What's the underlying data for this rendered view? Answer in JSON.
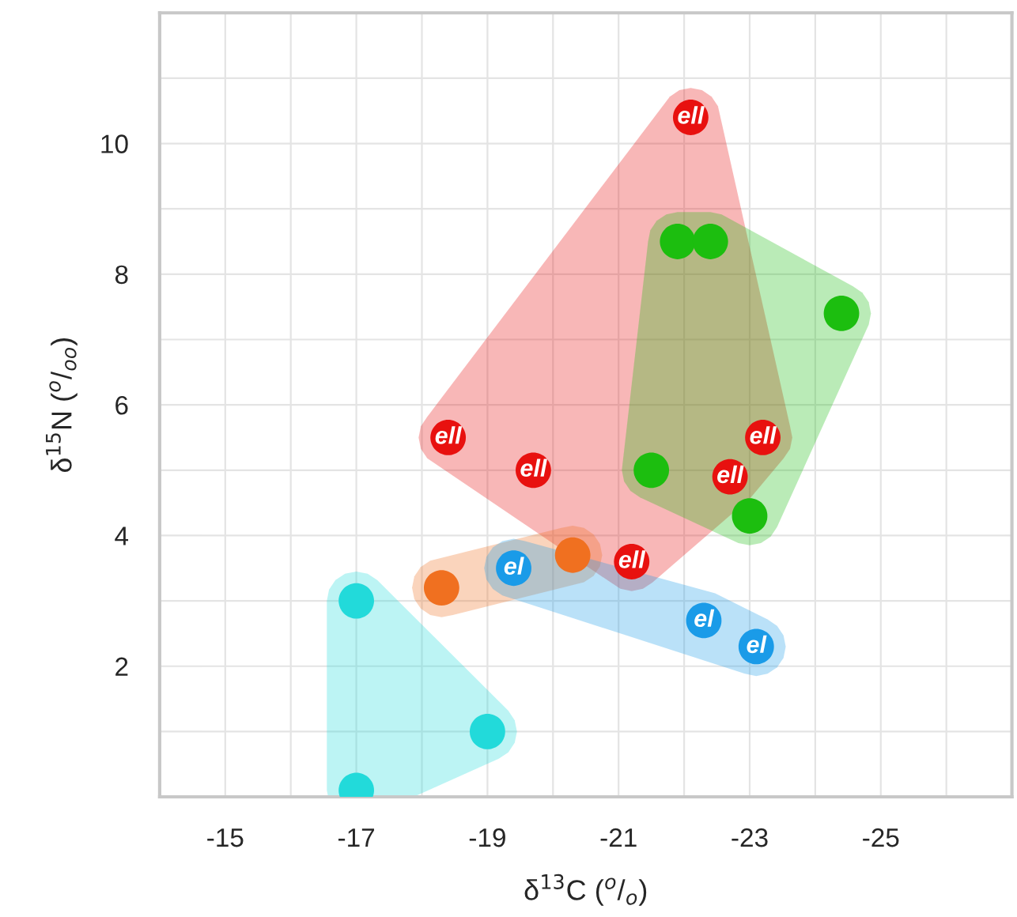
{
  "chart_data": {
    "type": "scatter",
    "xlabel": "δ$^{13}$C ($^{o}$/$_{o}$)",
    "ylabel": "δ$^{15}$N ($^{o}$/$_{oo}$)",
    "xlim": [
      -14,
      -27
    ],
    "ylim": [
      0,
      12
    ],
    "xticks": [
      {
        "value": -15,
        "label": "-15"
      },
      {
        "value": -16,
        "label": null
      },
      {
        "value": -17,
        "label": "-17"
      },
      {
        "value": -18,
        "label": null
      },
      {
        "value": -19,
        "label": "-19"
      },
      {
        "value": -20,
        "label": null
      },
      {
        "value": -21,
        "label": "-21"
      },
      {
        "value": -22,
        "label": null
      },
      {
        "value": -23,
        "label": "-23"
      },
      {
        "value": -24,
        "label": null
      },
      {
        "value": -25,
        "label": "-25"
      },
      {
        "value": -26,
        "label": null
      }
    ],
    "yticks": [
      {
        "value": 1,
        "label": null
      },
      2,
      {
        "value": 3,
        "label": null
      },
      4,
      {
        "value": 5,
        "label": null
      },
      6,
      {
        "value": 7,
        "label": null
      },
      8,
      {
        "value": 9,
        "label": null
      },
      10,
      {
        "value": 11,
        "label": null
      }
    ],
    "grid": true,
    "legend": false,
    "marker": "circle",
    "series": [
      {
        "color": "#e8110f",
        "x": [
          -22.1,
          -18.4,
          -19.7,
          -23.2,
          -22.7,
          -21.2
        ],
        "values": [
          10.4,
          5.5,
          5.0,
          5.5,
          4.9,
          3.6
        ]
      },
      {
        "color": "#1cbe0f",
        "x": [
          -21.9,
          -22.4,
          -24.4,
          -21.5,
          -23.0
        ],
        "values": [
          8.5,
          8.5,
          7.4,
          5.0,
          4.3
        ]
      },
      {
        "color": "#f07020",
        "x": [
          -18.3,
          -20.3
        ],
        "values": [
          3.2,
          3.7
        ]
      },
      {
        "color": "#1a9be8",
        "x": [
          -19.4,
          -22.3,
          -23.1
        ],
        "values": [
          3.5,
          2.7,
          2.3
        ]
      },
      {
        "color": "#22dada",
        "x": [
          -17.0,
          -19.0,
          -17.0
        ],
        "values": [
          3.0,
          1.0,
          0.1
        ]
      }
    ],
    "annotations": [
      {
        "text": "ell",
        "x": -22.1,
        "y": 10.4
      },
      {
        "text": "ell",
        "x": -18.4,
        "y": 5.5
      },
      {
        "text": "ell",
        "x": -19.7,
        "y": 5.0
      },
      {
        "text": "ell",
        "x": -23.2,
        "y": 5.5
      },
      {
        "text": "ell",
        "x": -22.7,
        "y": 4.9
      },
      {
        "text": "ell",
        "x": -21.2,
        "y": 3.6
      },
      {
        "text": "el",
        "x": -19.4,
        "y": 3.5
      },
      {
        "text": "el",
        "x": -22.3,
        "y": 2.7
      },
      {
        "text": "el",
        "x": -23.1,
        "y": 2.3
      }
    ]
  }
}
